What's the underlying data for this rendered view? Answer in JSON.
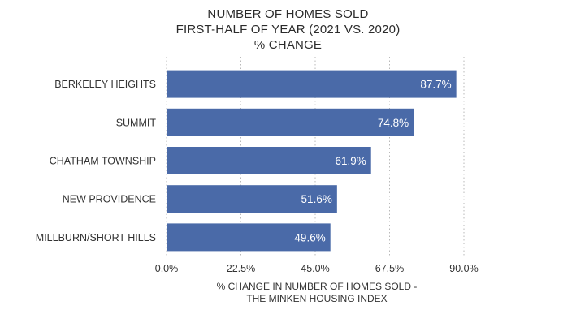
{
  "chart_data": {
    "type": "bar",
    "orientation": "horizontal",
    "title_lines": [
      "NUMBER OF HOMES SOLD",
      "FIRST-HALF OF YEAR (2021 VS. 2020)",
      "% CHANGE"
    ],
    "categories": [
      "BERKELEY HEIGHTS",
      "SUMMIT",
      "CHATHAM TOWNSHIP",
      "NEW PROVIDENCE",
      "MILLBURN/SHORT HILLS"
    ],
    "values": [
      87.7,
      74.8,
      61.9,
      51.6,
      49.6
    ],
    "value_labels": [
      "87.7%",
      "74.8%",
      "61.9%",
      "51.6%",
      "49.6%"
    ],
    "x_ticks": [
      0,
      22.5,
      45,
      67.5,
      90
    ],
    "x_tick_labels": [
      "0.0%",
      "22.5%",
      "45.0%",
      "67.5%",
      "90.0%"
    ],
    "xlim": [
      0,
      90
    ],
    "xlabel_lines": [
      "% CHANGE IN NUMBER OF HOMES SOLD -",
      "THE MINKEN HOUSING INDEX"
    ],
    "grid": "vertical dotted",
    "legend": "none",
    "bar_color": "#4a6aa8"
  }
}
